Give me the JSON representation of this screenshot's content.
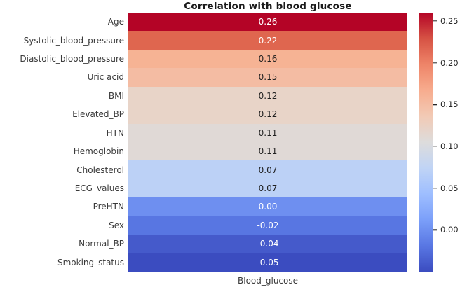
{
  "title": "Correlation with blood glucose",
  "x_tick_label": "Blood_glucose",
  "colors": {
    "background": "#ffffff",
    "title_text": "#1a1a1a",
    "label_text": "#3a3a3a",
    "tick_mark": "#262626",
    "annotation_dark": "#1f1f1f",
    "annotation_light": "#ffffff"
  },
  "chart_data": {
    "type": "heatmap",
    "title": "Correlation with blood glucose",
    "x_categories": [
      "Blood_glucose"
    ],
    "y_categories": [
      "Age",
      "Systolic_blood_pressure",
      "Diastolic_blood_pressure",
      "Uric acid",
      "BMI",
      "Elevated_BP",
      "HTN",
      "Hemoglobin",
      "Cholesterol",
      "ECG_values",
      "PreHTN",
      "Sex",
      "Normal_BP",
      "Smoking_status"
    ],
    "values": [
      0.26,
      0.22,
      0.16,
      0.15,
      0.12,
      0.12,
      0.11,
      0.11,
      0.07,
      0.07,
      0.0,
      -0.02,
      -0.04,
      -0.05
    ],
    "colormap": "coolwarm",
    "vmin": -0.05,
    "vmax": 0.26,
    "annotations_on": true,
    "grid": false,
    "rows": [
      {
        "label": "Age",
        "value": 0.26,
        "value_label": "0.26",
        "color": "#b40426",
        "text": "light"
      },
      {
        "label": "Systolic_blood_pressure",
        "value": 0.22,
        "value_label": "0.22",
        "color": "#df664f",
        "text": "light"
      },
      {
        "label": "Diastolic_blood_pressure",
        "value": 0.16,
        "value_label": "0.16",
        "color": "#f6b394",
        "text": "dark"
      },
      {
        "label": "Uric acid",
        "value": 0.15,
        "value_label": "0.15",
        "color": "#f4bca3",
        "text": "dark"
      },
      {
        "label": "BMI",
        "value": 0.12,
        "value_label": "0.12",
        "color": "#e8d4c8",
        "text": "dark"
      },
      {
        "label": "Elevated_BP",
        "value": 0.12,
        "value_label": "0.12",
        "color": "#e8d4c8",
        "text": "dark"
      },
      {
        "label": "HTN",
        "value": 0.11,
        "value_label": "0.11",
        "color": "#e0d9d6",
        "text": "dark"
      },
      {
        "label": "Hemoglobin",
        "value": 0.11,
        "value_label": "0.11",
        "color": "#e0d9d6",
        "text": "dark"
      },
      {
        "label": "Cholesterol",
        "value": 0.07,
        "value_label": "0.07",
        "color": "#bcd1f6",
        "text": "dark"
      },
      {
        "label": "ECG_values",
        "value": 0.07,
        "value_label": "0.07",
        "color": "#bcd1f6",
        "text": "dark"
      },
      {
        "label": "PreHTN",
        "value": 0.0,
        "value_label": "0.00",
        "color": "#6e8ff0",
        "text": "light"
      },
      {
        "label": "Sex",
        "value": -0.02,
        "value_label": "-0.02",
        "color": "#5876e2",
        "text": "light"
      },
      {
        "label": "Normal_BP",
        "value": -0.04,
        "value_label": "-0.04",
        "color": "#455acb",
        "text": "light"
      },
      {
        "label": "Smoking_status",
        "value": -0.05,
        "value_label": "-0.05",
        "color": "#3b4cc0",
        "text": "light"
      }
    ],
    "colorbar": {
      "position": "right",
      "ticks": [
        {
          "label": "0.25",
          "value": 0.25
        },
        {
          "label": "0.20",
          "value": 0.2
        },
        {
          "label": "0.15",
          "value": 0.15
        },
        {
          "label": "0.10",
          "value": 0.1
        },
        {
          "label": "0.05",
          "value": 0.05
        },
        {
          "label": "0.00",
          "value": 0.0
        }
      ],
      "gradient_top_to_bottom": [
        "#b40426",
        "#d65244",
        "#ee8468",
        "#f7ac8e",
        "#f2cab5",
        "#dddcdc",
        "#c0d4f5",
        "#9ebeff",
        "#7b9ff9",
        "#5977e3",
        "#3b4cc0"
      ]
    }
  }
}
